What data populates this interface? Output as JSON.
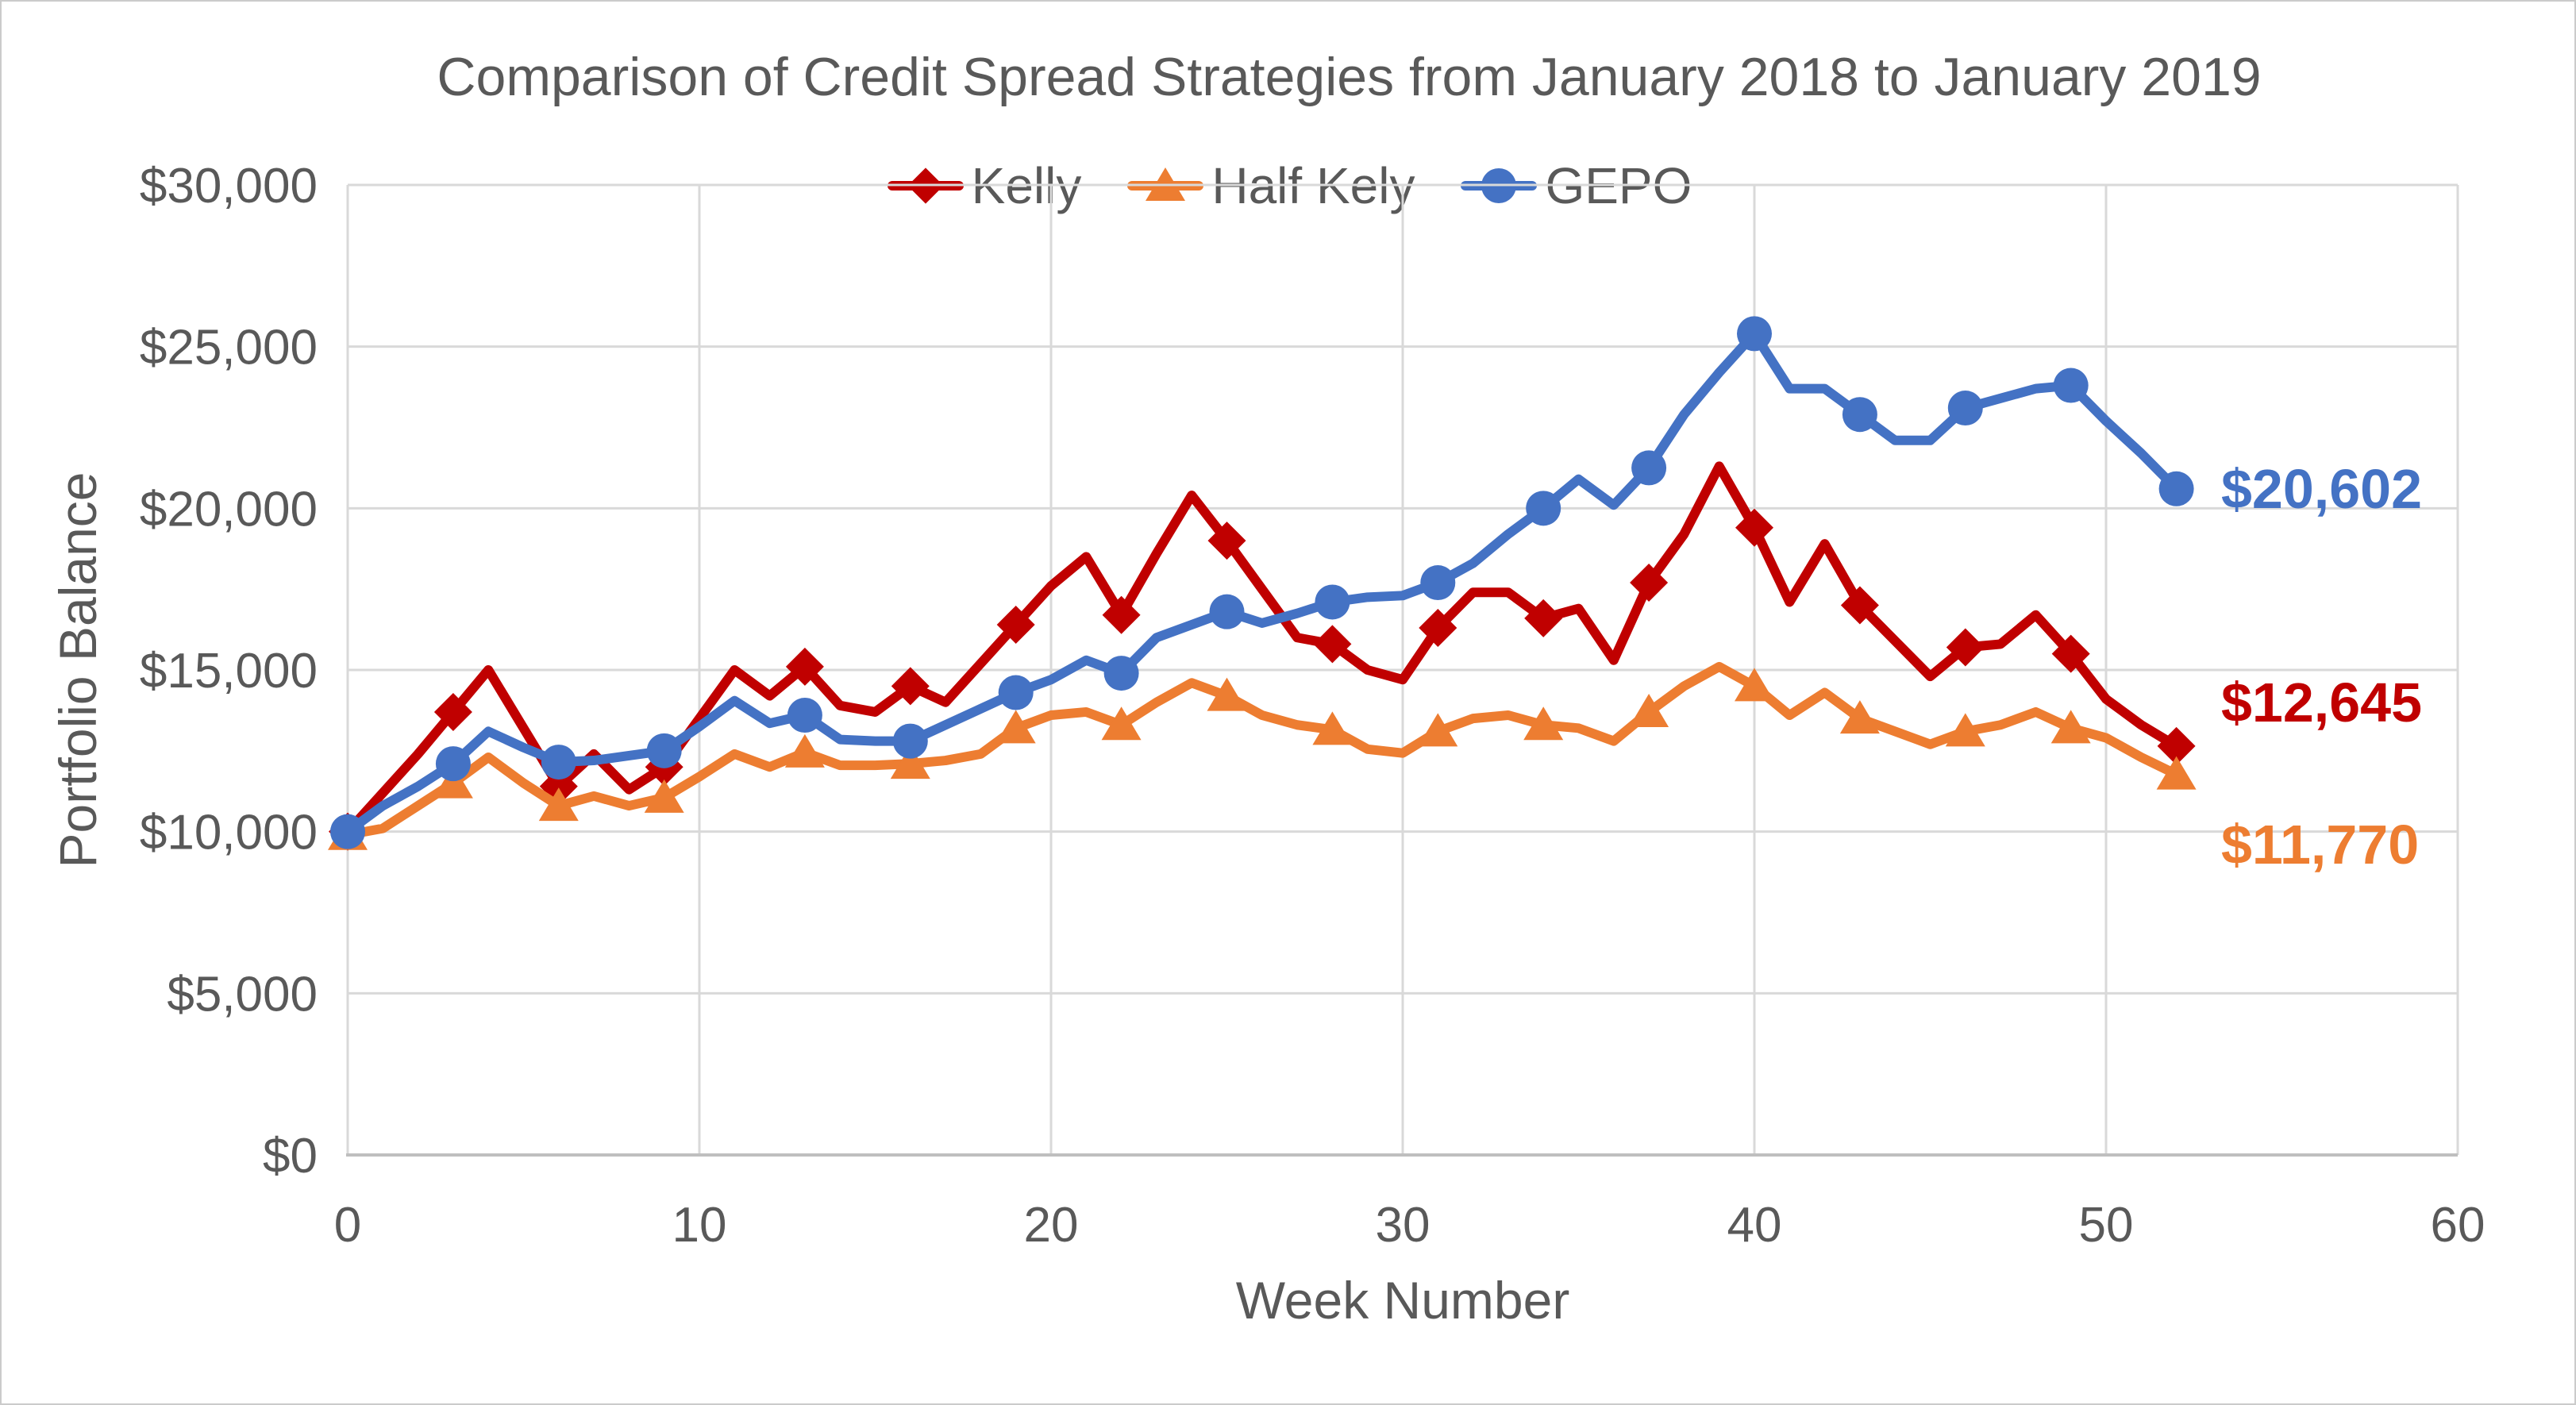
{
  "chart_data": {
    "type": "line",
    "title": "Comparison of Credit Spread Strategies from January 2018 to January 2019",
    "xlabel": "Week Number",
    "ylabel": "Portfolio Balance",
    "x_range": [
      0,
      60
    ],
    "y_range": [
      0,
      30000
    ],
    "x_ticks": [
      0,
      10,
      20,
      30,
      40,
      50,
      60
    ],
    "y_ticks": [
      {
        "value": 0,
        "label": "$0"
      },
      {
        "value": 5000,
        "label": "$5,000"
      },
      {
        "value": 10000,
        "label": "$10,000"
      },
      {
        "value": 15000,
        "label": "$15,000"
      },
      {
        "value": 20000,
        "label": "$20,000"
      },
      {
        "value": 25000,
        "label": "$25,000"
      },
      {
        "value": 30000,
        "label": "$30,000"
      }
    ],
    "grid": true,
    "legend_position": "top-center",
    "weeks": [
      0,
      1,
      2,
      3,
      4,
      5,
      6,
      7,
      8,
      9,
      10,
      11,
      12,
      13,
      14,
      15,
      16,
      17,
      18,
      19,
      20,
      21,
      22,
      23,
      24,
      25,
      26,
      27,
      28,
      29,
      30,
      31,
      32,
      33,
      34,
      35,
      36,
      37,
      38,
      39,
      40,
      41,
      42,
      43,
      44,
      45,
      46,
      47,
      48,
      49,
      50,
      51,
      52
    ],
    "marker_weeks": [
      0,
      3,
      6,
      9,
      13,
      16,
      19,
      22,
      25,
      28,
      31,
      34,
      37,
      40,
      43,
      46,
      49,
      52
    ],
    "series": [
      {
        "name": "Kelly",
        "color": "#C00000",
        "marker": "diamond",
        "end_label": "$12,645",
        "final_value": 12645,
        "values": [
          10000,
          11200,
          12400,
          13700,
          15000,
          13200,
          11400,
          12400,
          11300,
          12000,
          13500,
          15000,
          14200,
          15100,
          13900,
          13700,
          14500,
          14000,
          15200,
          16400,
          17600,
          18500,
          16700,
          18600,
          20400,
          19000,
          17500,
          16000,
          15800,
          15000,
          14700,
          16300,
          17400,
          17400,
          16600,
          16900,
          15300,
          17700,
          19200,
          21300,
          19400,
          17100,
          18900,
          17000,
          15900,
          14800,
          15700,
          15800,
          16700,
          15500,
          14100,
          13300,
          12645
        ]
      },
      {
        "name": "Half Kely",
        "color": "#ED7D31",
        "marker": "triangle",
        "end_label": "$11,770",
        "final_value": 11770,
        "values": [
          9900,
          10100,
          10800,
          11500,
          12300,
          11500,
          10800,
          11100,
          10800,
          11050,
          11700,
          12400,
          12000,
          12450,
          12050,
          12050,
          12100,
          12200,
          12400,
          13200,
          13600,
          13700,
          13300,
          14000,
          14600,
          14200,
          13600,
          13300,
          13150,
          12550,
          12430,
          13100,
          13500,
          13600,
          13300,
          13200,
          12800,
          13700,
          14500,
          15100,
          14500,
          13600,
          14300,
          13500,
          13100,
          12700,
          13100,
          13300,
          13700,
          13200,
          12900,
          12300,
          11770
        ]
      },
      {
        "name": "GEPO",
        "color": "#4472C4",
        "marker": "circle",
        "end_label": "$20,602",
        "final_value": 20602,
        "values": [
          10000,
          10800,
          11400,
          12100,
          13100,
          12600,
          12150,
          12200,
          12350,
          12500,
          13250,
          14050,
          13350,
          13600,
          12850,
          12800,
          12800,
          13300,
          13800,
          14300,
          14700,
          15300,
          14900,
          16000,
          16400,
          16800,
          16450,
          16750,
          17100,
          17250,
          17300,
          17700,
          18300,
          19200,
          20000,
          20900,
          20100,
          21250,
          22900,
          24200,
          25400,
          23700,
          23700,
          22900,
          22100,
          22100,
          23100,
          23400,
          23700,
          23800,
          22700,
          21700,
          20602
        ]
      }
    ]
  }
}
